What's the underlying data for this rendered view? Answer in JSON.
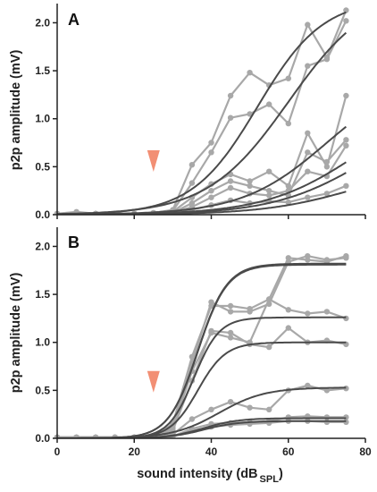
{
  "chart_data": [
    {
      "type": "line",
      "panel_label": "A",
      "ylabel": "p2p amplitude (mV)",
      "xlim": [
        0,
        80
      ],
      "ylim": [
        0,
        2.2
      ],
      "y_ticks": [
        0.0,
        0.5,
        1.0,
        1.5,
        2.0
      ],
      "y_tick_labels": [
        "0.0",
        "0.5",
        "1.0",
        "1.5",
        "2.0"
      ],
      "marker": {
        "x": 25,
        "color": "#f28f74"
      },
      "colors": {
        "data": "#a8a8a8",
        "fit": "#4a4a4a"
      },
      "x": [
        0,
        5,
        10,
        15,
        20,
        25,
        30,
        35,
        40,
        45,
        50,
        55,
        60,
        65,
        70,
        75
      ],
      "series": [
        {
          "values": [
            0.01,
            0.03,
            0.01,
            0.01,
            0.01,
            0.02,
            0.05,
            0.52,
            0.75,
            1.24,
            1.48,
            1.35,
            1.42,
            1.98,
            1.64,
            2.13
          ]
        },
        {
          "values": [
            0.01,
            0.02,
            0.01,
            0.01,
            0.01,
            0.02,
            0.04,
            0.33,
            0.65,
            1.01,
            1.05,
            1.15,
            0.95,
            1.55,
            1.62,
            2.02
          ]
        },
        {
          "values": [
            0.01,
            0.01,
            0.01,
            0.01,
            0.01,
            0.01,
            0.03,
            0.18,
            0.32,
            0.42,
            0.35,
            0.45,
            0.3,
            0.85,
            0.5,
            1.24
          ]
        },
        {
          "values": [
            0.01,
            0.01,
            0.01,
            0.01,
            0.01,
            0.01,
            0.02,
            0.12,
            0.25,
            0.35,
            0.3,
            0.25,
            0.2,
            0.65,
            0.55,
            0.78
          ]
        },
        {
          "values": [
            0.01,
            0.01,
            0.01,
            0.01,
            0.01,
            0.01,
            0.02,
            0.08,
            0.18,
            0.28,
            0.22,
            0.2,
            0.25,
            0.45,
            0.4,
            0.72
          ]
        },
        {
          "values": [
            0.01,
            0.01,
            0.01,
            0.01,
            0.01,
            0.01,
            0.01,
            0.05,
            0.1,
            0.15,
            0.12,
            0.14,
            0.13,
            0.18,
            0.22,
            0.3
          ]
        }
      ],
      "fits": [
        {
          "amp": 2.25,
          "x50": 52,
          "k": 8.5
        },
        {
          "amp": 2.35,
          "x50": 60,
          "k": 10.5
        },
        {
          "amp": 1.5,
          "x50": 70,
          "k": 11
        },
        {
          "amp": 1.25,
          "x50": 78,
          "k": 12
        },
        {
          "amp": 1.1,
          "x50": 80,
          "k": 12
        },
        {
          "amp": 0.55,
          "x50": 78,
          "k": 12
        }
      ]
    },
    {
      "type": "line",
      "panel_label": "B",
      "xlabel_main": "sound intensity (dB",
      "xlabel_sub": "SPL",
      "xlabel_close": ")",
      "ylabel": "p2p amplitude (mV)",
      "xlim": [
        0,
        80
      ],
      "ylim": [
        0,
        2.2
      ],
      "x_ticks": [
        0,
        20,
        40,
        60,
        80
      ],
      "x_tick_labels": [
        "0",
        "20",
        "40",
        "60",
        "80"
      ],
      "y_ticks": [
        0.0,
        0.5,
        1.0,
        1.5,
        2.0
      ],
      "y_tick_labels": [
        "0.0",
        "0.5",
        "1.0",
        "1.5",
        "2.0"
      ],
      "marker": {
        "x": 25,
        "color": "#f28f74"
      },
      "colors": {
        "data": "#a8a8a8",
        "fit": "#4a4a4a"
      },
      "x": [
        0,
        5,
        10,
        15,
        20,
        25,
        30,
        35,
        40,
        45,
        50,
        55,
        60,
        65,
        70,
        75
      ],
      "series": [
        {
          "values": [
            0.01,
            0.01,
            0.01,
            0.01,
            0.01,
            0.02,
            0.15,
            0.85,
            1.38,
            1.38,
            1.35,
            1.45,
            1.88,
            1.86,
            1.84,
            1.9
          ]
        },
        {
          "values": [
            0.01,
            0.01,
            0.01,
            0.01,
            0.01,
            0.02,
            0.12,
            0.78,
            1.42,
            1.32,
            1.32,
            1.4,
            1.84,
            1.9,
            1.86,
            1.88
          ]
        },
        {
          "values": [
            0.01,
            0.01,
            0.01,
            0.01,
            0.01,
            0.02,
            0.1,
            0.7,
            1.1,
            1.05,
            1.0,
            1.45,
            1.34,
            1.3,
            1.32,
            1.25
          ]
        },
        {
          "values": [
            0.01,
            0.01,
            0.01,
            0.01,
            0.01,
            0.01,
            0.08,
            0.6,
            1.12,
            1.1,
            0.98,
            0.95,
            1.15,
            1.0,
            1.02,
            0.98
          ]
        },
        {
          "values": [
            0.01,
            0.01,
            0.01,
            0.01,
            0.01,
            0.01,
            0.04,
            0.2,
            0.3,
            0.38,
            0.32,
            0.3,
            0.5,
            0.55,
            0.5,
            0.52
          ]
        },
        {
          "values": [
            0.01,
            0.01,
            0.01,
            0.01,
            0.01,
            0.01,
            0.02,
            0.1,
            0.15,
            0.16,
            0.17,
            0.18,
            0.22,
            0.23,
            0.22,
            0.22
          ]
        },
        {
          "values": [
            0.01,
            0.01,
            0.01,
            0.01,
            0.01,
            0.01,
            0.02,
            0.08,
            0.12,
            0.14,
            0.15,
            0.16,
            0.18,
            0.18,
            0.17,
            0.17
          ]
        }
      ],
      "fits": [
        {
          "amp": 1.82,
          "x50": 36.5,
          "k": 3.8
        },
        {
          "amp": 1.81,
          "x50": 36.5,
          "k": 3.8
        },
        {
          "amp": 1.26,
          "x50": 35.5,
          "k": 3.3
        },
        {
          "amp": 1.0,
          "x50": 36.5,
          "k": 3.6
        },
        {
          "amp": 0.53,
          "x50": 42,
          "k": 6
        },
        {
          "amp": 0.21,
          "x50": 38,
          "k": 4.5
        },
        {
          "amp": 0.18,
          "x50": 38,
          "k": 4.5
        }
      ]
    }
  ]
}
